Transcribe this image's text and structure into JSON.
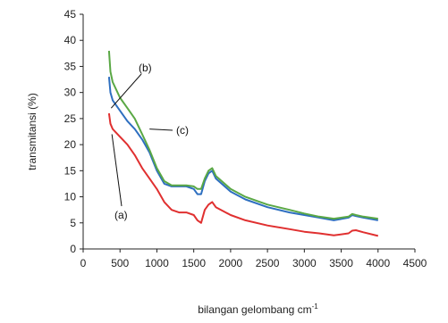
{
  "chart_data": {
    "type": "line",
    "title": "",
    "xlabel": "bilangan gelombang cm",
    "xlabel_superscript": "-1",
    "ylabel": "transmitansi (%)",
    "xlim": [
      0,
      4500
    ],
    "ylim": [
      0,
      45
    ],
    "x_ticks": [
      "0",
      "500",
      "1000",
      "1500",
      "2000",
      "2500",
      "3000",
      "3500",
      "4000",
      "4500"
    ],
    "y_ticks": [
      "0",
      "5",
      "10",
      "15",
      "20",
      "25",
      "30",
      "35",
      "40",
      "45"
    ],
    "grid": false,
    "legend": "none",
    "series": [
      {
        "name": "(a)",
        "color": "#e03030",
        "points": [
          [
            350,
            26
          ],
          [
            370,
            24
          ],
          [
            400,
            23
          ],
          [
            500,
            21.5
          ],
          [
            600,
            20
          ],
          [
            700,
            18
          ],
          [
            800,
            15.5
          ],
          [
            900,
            13.5
          ],
          [
            1000,
            11.5
          ],
          [
            1100,
            9
          ],
          [
            1200,
            7.5
          ],
          [
            1300,
            7
          ],
          [
            1400,
            7
          ],
          [
            1500,
            6.5
          ],
          [
            1550,
            5.5
          ],
          [
            1600,
            5
          ],
          [
            1650,
            7.5
          ],
          [
            1700,
            8.5
          ],
          [
            1750,
            9
          ],
          [
            1800,
            8
          ],
          [
            2000,
            6.5
          ],
          [
            2200,
            5.5
          ],
          [
            2500,
            4.5
          ],
          [
            2800,
            3.8
          ],
          [
            3000,
            3.3
          ],
          [
            3200,
            3
          ],
          [
            3400,
            2.6
          ],
          [
            3600,
            3
          ],
          [
            3650,
            3.5
          ],
          [
            3700,
            3.6
          ],
          [
            3800,
            3.2
          ],
          [
            4000,
            2.5
          ]
        ]
      },
      {
        "name": "(b)",
        "color": "#2e6fc0",
        "points": [
          [
            350,
            33
          ],
          [
            370,
            30
          ],
          [
            400,
            28.5
          ],
          [
            500,
            26.5
          ],
          [
            600,
            24.5
          ],
          [
            700,
            23
          ],
          [
            800,
            21
          ],
          [
            900,
            18.5
          ],
          [
            1000,
            15
          ],
          [
            1100,
            12.5
          ],
          [
            1200,
            12
          ],
          [
            1300,
            12
          ],
          [
            1400,
            12
          ],
          [
            1500,
            11.5
          ],
          [
            1550,
            10.5
          ],
          [
            1600,
            10.5
          ],
          [
            1650,
            13
          ],
          [
            1700,
            14.5
          ],
          [
            1750,
            15
          ],
          [
            1800,
            13.5
          ],
          [
            2000,
            11
          ],
          [
            2200,
            9.5
          ],
          [
            2500,
            8
          ],
          [
            2800,
            7
          ],
          [
            3000,
            6.5
          ],
          [
            3200,
            6
          ],
          [
            3400,
            5.5
          ],
          [
            3600,
            6
          ],
          [
            3650,
            6.5
          ],
          [
            3700,
            6.3
          ],
          [
            3800,
            6
          ],
          [
            4000,
            5.5
          ]
        ]
      },
      {
        "name": "(c)",
        "color": "#5aa845",
        "points": [
          [
            350,
            38
          ],
          [
            370,
            34
          ],
          [
            400,
            32
          ],
          [
            500,
            29
          ],
          [
            600,
            27
          ],
          [
            700,
            25
          ],
          [
            800,
            22
          ],
          [
            900,
            19
          ],
          [
            1000,
            15.5
          ],
          [
            1100,
            13
          ],
          [
            1200,
            12.2
          ],
          [
            1300,
            12.2
          ],
          [
            1400,
            12.2
          ],
          [
            1500,
            12
          ],
          [
            1550,
            11.5
          ],
          [
            1600,
            11.5
          ],
          [
            1650,
            13.5
          ],
          [
            1700,
            15
          ],
          [
            1750,
            15.5
          ],
          [
            1800,
            14
          ],
          [
            2000,
            11.5
          ],
          [
            2200,
            10
          ],
          [
            2500,
            8.5
          ],
          [
            2800,
            7.5
          ],
          [
            3000,
            6.8
          ],
          [
            3200,
            6.2
          ],
          [
            3400,
            5.8
          ],
          [
            3600,
            6.2
          ],
          [
            3650,
            6.7
          ],
          [
            3700,
            6.5
          ],
          [
            3800,
            6.2
          ],
          [
            4000,
            5.8
          ]
        ]
      }
    ],
    "annotations": [
      {
        "text": "(a)",
        "series": "(a)",
        "target": [
          390,
          22
        ]
      },
      {
        "text": "(b)",
        "series": "(b)",
        "target": [
          380,
          27
        ]
      },
      {
        "text": "(c)",
        "series": "(c)",
        "target": [
          900,
          23
        ]
      }
    ]
  }
}
